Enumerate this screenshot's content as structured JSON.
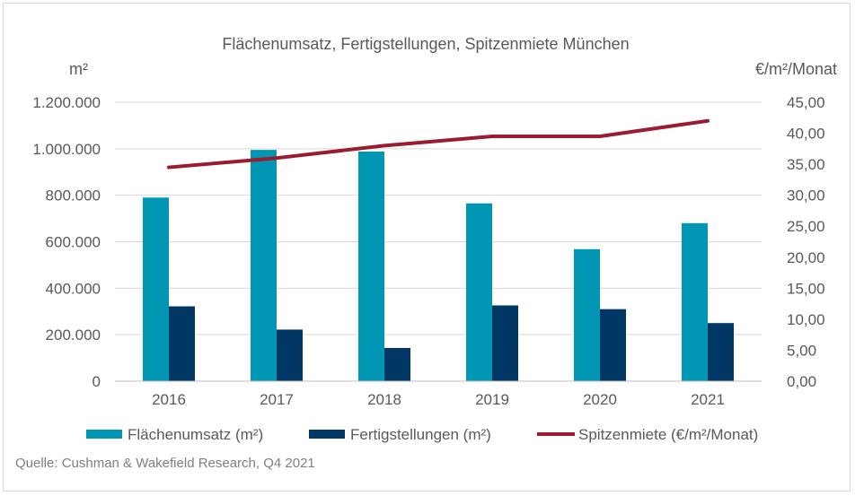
{
  "chart_data": {
    "type": "bar",
    "title": "Flächenumsatz, Fertigstellungen, Spitzenmiete München",
    "y_left_label": "m²",
    "y_right_label": "€/m²/Monat",
    "categories": [
      "2016",
      "2017",
      "2018",
      "2019",
      "2020",
      "2021"
    ],
    "y_left_range": [
      0,
      1200000
    ],
    "y_right_range": [
      0,
      45
    ],
    "y_left_ticks": [
      "0",
      "200.000",
      "400.000",
      "600.000",
      "800.000",
      "1.000.000",
      "1.200.000"
    ],
    "y_right_ticks": [
      "0,00",
      "5,00",
      "10,00",
      "15,00",
      "20,00",
      "25,00",
      "30,00",
      "35,00",
      "40,00",
      "45,00"
    ],
    "gridlines": true,
    "legend_position": "bottom",
    "series": [
      {
        "name": "Flächenumsatz (m²)",
        "type": "bar",
        "axis": "left",
        "color": "#0096B4",
        "values": [
          790000,
          995000,
          988000,
          765000,
          568000,
          680000
        ]
      },
      {
        "name": "Fertigstellungen (m²)",
        "type": "bar",
        "axis": "left",
        "color": "#003764",
        "values": [
          322000,
          222000,
          143000,
          326000,
          310000,
          250000
        ]
      },
      {
        "name": "Spitzenmiete (€/m²/Monat)",
        "type": "line",
        "axis": "right",
        "color": "#9B1B30",
        "values": [
          34.5,
          36.0,
          38.0,
          39.5,
          39.5,
          42.0
        ]
      }
    ]
  },
  "source": "Quelle: Cushman & Wakefield Research, Q4 2021"
}
